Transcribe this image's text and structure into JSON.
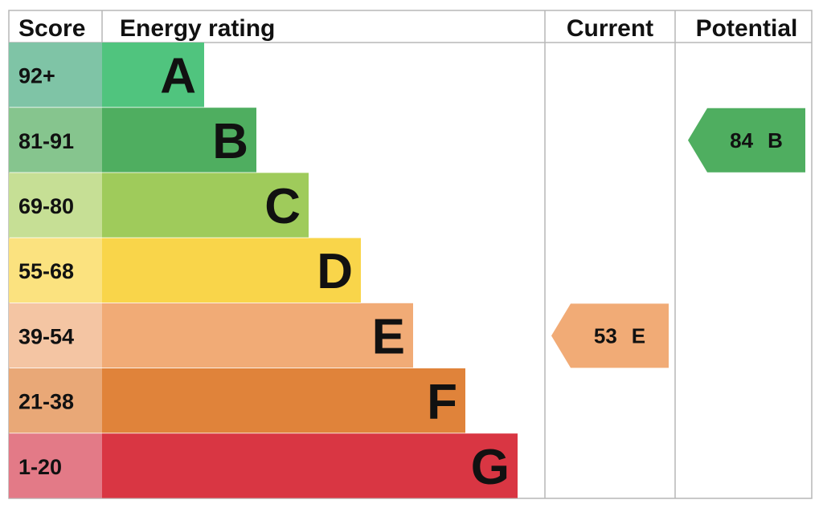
{
  "chart_data": {
    "type": "bar",
    "headers": {
      "score": "Score",
      "rating": "Energy rating",
      "current": "Current",
      "potential": "Potential"
    },
    "bands": [
      {
        "band": "A",
        "range": "92+",
        "color": "#50c47e",
        "score_color": "#7fc4a6"
      },
      {
        "band": "B",
        "range": "81-91",
        "color": "#4fae60",
        "score_color": "#86c58e"
      },
      {
        "band": "C",
        "range": "69-80",
        "color": "#9fcb5b",
        "score_color": "#c6df95"
      },
      {
        "band": "D",
        "range": "55-68",
        "color": "#f9d54a",
        "score_color": "#fbe27f"
      },
      {
        "band": "E",
        "range": "39-54",
        "color": "#f1ab76",
        "score_color": "#f4c5a3"
      },
      {
        "band": "F",
        "range": "21-38",
        "color": "#e0833a",
        "score_color": "#e9a877"
      },
      {
        "band": "G",
        "range": "1-20",
        "color": "#d93643",
        "score_color": "#e37a87"
      }
    ],
    "current": {
      "score": "53",
      "band": "E",
      "color": "#f1ab76"
    },
    "potential": {
      "score": "84",
      "band": "B",
      "color": "#4fae60"
    }
  }
}
